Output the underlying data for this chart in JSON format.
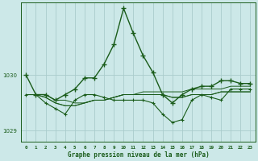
{
  "xlabel": "Graphe pression niveau de la mer (hPa)",
  "bg_color": "#cce8e8",
  "grid_color": "#aacccc",
  "line_color": "#1a5c1a",
  "ylim": [
    1028.8,
    1031.3
  ],
  "xlim": [
    -0.5,
    23.5
  ],
  "yticks": [
    1029,
    1030
  ],
  "xticks": [
    0,
    1,
    2,
    3,
    4,
    5,
    6,
    7,
    8,
    9,
    10,
    11,
    12,
    13,
    14,
    15,
    16,
    17,
    18,
    19,
    20,
    21,
    22,
    23
  ],
  "series_main": [
    1030.0,
    1029.65,
    1029.65,
    1029.55,
    1029.65,
    1029.75,
    1029.95,
    1029.95,
    1030.2,
    1030.55,
    1031.2,
    1030.75,
    1030.35,
    1030.05,
    1029.65,
    1029.5,
    1029.65,
    1029.75,
    1029.8,
    1029.8,
    1029.9,
    1029.9,
    1029.85,
    1029.85
  ],
  "series_flat": [
    [
      1029.65,
      1029.65,
      1029.65,
      1029.55,
      1029.55,
      1029.5,
      1029.5,
      1029.55,
      1029.55,
      1029.6,
      1029.65,
      1029.65,
      1029.7,
      1029.7,
      1029.7,
      1029.7,
      1029.7,
      1029.75,
      1029.75,
      1029.75,
      1029.75,
      1029.8,
      1029.8,
      1029.8
    ],
    [
      1029.65,
      1029.65,
      1029.6,
      1029.5,
      1029.45,
      1029.45,
      1029.5,
      1029.55,
      1029.55,
      1029.6,
      1029.65,
      1029.65,
      1029.65,
      1029.65,
      1029.65,
      1029.6,
      1029.6,
      1029.65,
      1029.65,
      1029.65,
      1029.7,
      1029.7,
      1029.7,
      1029.7
    ],
    [
      1029.65,
      1029.65,
      1029.6,
      1029.5,
      1029.45,
      1029.45,
      1029.5,
      1029.55,
      1029.55,
      1029.6,
      1029.65,
      1029.65,
      1029.65,
      1029.65,
      1029.65,
      1029.6,
      1029.6,
      1029.65,
      1029.65,
      1029.65,
      1029.7,
      1029.7,
      1029.7,
      1029.7
    ]
  ],
  "series_zigzag": [
    1029.65,
    1029.65,
    1029.5,
    1029.4,
    1029.3,
    1029.55,
    1029.65,
    1029.65,
    1029.6,
    1029.55,
    1029.55,
    1029.55,
    1029.55,
    1029.5,
    1029.3,
    1029.15,
    1029.2,
    1029.55,
    1029.65,
    1029.6,
    1029.55,
    1029.75,
    1029.75,
    1029.75
  ]
}
